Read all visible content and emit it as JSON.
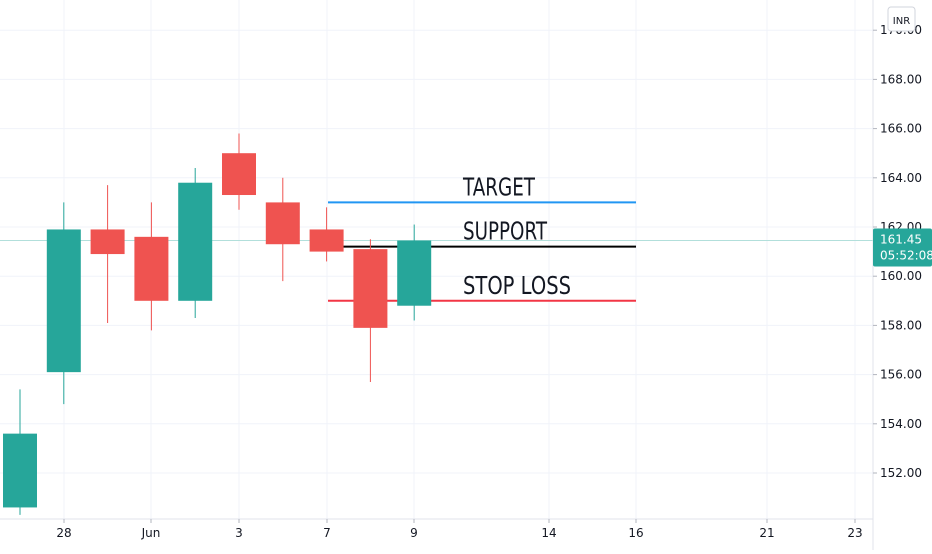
{
  "chart_data": {
    "type": "candlestick",
    "currency": "INR",
    "y_range": [
      150.3,
      170.5
    ],
    "y_ticks": [
      "152.00",
      "154.00",
      "156.00",
      "158.00",
      "160.00",
      "162.00",
      "164.00",
      "166.00",
      "168.00",
      "170.00"
    ],
    "x_tick_labels": [
      "28",
      "Jun",
      "3",
      "7",
      "9",
      "14",
      "16",
      "21",
      "23"
    ],
    "candles": [
      {
        "open": 150.6,
        "high": 155.4,
        "low": 150.3,
        "close": 153.6
      },
      {
        "open": 156.1,
        "high": 163.0,
        "low": 154.8,
        "close": 161.9
      },
      {
        "open": 161.9,
        "high": 163.7,
        "low": 158.1,
        "close": 160.9
      },
      {
        "open": 161.6,
        "high": 163.0,
        "low": 157.8,
        "close": 159.0
      },
      {
        "open": 159.0,
        "high": 164.4,
        "low": 158.3,
        "close": 163.8
      },
      {
        "open": 165.0,
        "high": 165.8,
        "low": 162.7,
        "close": 163.3
      },
      {
        "open": 163.0,
        "high": 164.0,
        "low": 159.8,
        "close": 161.3
      },
      {
        "open": 161.9,
        "high": 162.8,
        "low": 160.6,
        "close": 161.0
      },
      {
        "open": 161.1,
        "high": 161.5,
        "low": 155.7,
        "close": 157.9
      },
      {
        "open": 158.8,
        "high": 162.1,
        "low": 158.2,
        "close": 161.45
      }
    ],
    "levels": [
      {
        "label": "TARGET",
        "value": 163.0,
        "color": "#2196f3"
      },
      {
        "label": "SUPPORT",
        "value": 161.2,
        "color": "#000000"
      },
      {
        "label": "STOP LOSS",
        "value": 159.0,
        "color": "#f23645"
      }
    ],
    "current_price": "161.45",
    "countdown": "05:52:08",
    "colors": {
      "up": "#26a69a",
      "down": "#ef5350",
      "badge": "#26a69a"
    }
  }
}
